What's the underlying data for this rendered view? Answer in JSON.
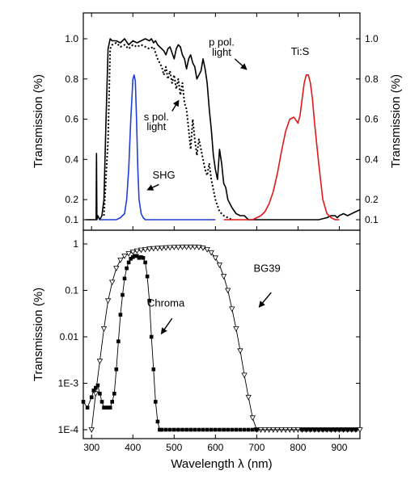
{
  "chart_data": [
    {
      "panel": "top",
      "type": "line",
      "ylabel_left": "Transmission (%)",
      "ylabel_right": "Transmission (%)",
      "xlim": [
        280,
        950
      ],
      "ylim": [
        0.1,
        1.0
      ],
      "xticks": [
        300,
        400,
        500,
        600,
        700,
        800,
        900
      ],
      "yticks": [
        {
          "v": 0.1,
          "label": "0.1"
        },
        {
          "v": 0.2,
          "label": "0.2"
        },
        {
          "v": 0.4,
          "label": "0.4"
        },
        {
          "v": 0.6,
          "label": "0.6"
        },
        {
          "v": 0.8,
          "label": "0.8"
        },
        {
          "v": 1.0,
          "label": "1.0"
        }
      ],
      "grid": false,
      "series": [
        {
          "name": "p pol. light",
          "color": "#000000",
          "style": "solid",
          "x": [
            285,
            300,
            311,
            312,
            313,
            315,
            320,
            325,
            330,
            335,
            340,
            345,
            350,
            360,
            370,
            380,
            390,
            400,
            410,
            420,
            430,
            440,
            445,
            450,
            455,
            460,
            465,
            470,
            475,
            480,
            485,
            490,
            495,
            500,
            505,
            510,
            515,
            520,
            525,
            530,
            535,
            540,
            545,
            550,
            555,
            560,
            565,
            570,
            575,
            580,
            585,
            590,
            595,
            600,
            605,
            610,
            615,
            620,
            625,
            630,
            640,
            650,
            660,
            670,
            680,
            700,
            750,
            800,
            850,
            870,
            880,
            890,
            895,
            900,
            910,
            920,
            930,
            940,
            950
          ],
          "y": [
            0.1,
            0.1,
            0.1,
            0.43,
            0.1,
            0.12,
            0.1,
            0.12,
            0.2,
            0.6,
            0.95,
            1.0,
            0.99,
            0.99,
            0.98,
            1.0,
            0.97,
            0.99,
            0.98,
            0.99,
            1.0,
            0.99,
            1.0,
            0.98,
            0.99,
            0.97,
            0.96,
            0.95,
            0.94,
            0.92,
            0.95,
            0.96,
            0.93,
            0.9,
            0.95,
            0.97,
            0.96,
            0.92,
            0.9,
            0.85,
            0.9,
            0.92,
            0.88,
            0.86,
            0.8,
            0.82,
            0.84,
            0.9,
            0.85,
            0.78,
            0.65,
            0.55,
            0.42,
            0.35,
            0.3,
            0.45,
            0.38,
            0.28,
            0.26,
            0.2,
            0.16,
            0.13,
            0.12,
            0.12,
            0.1,
            0.1,
            0.1,
            0.1,
            0.1,
            0.11,
            0.12,
            0.12,
            0.11,
            0.12,
            0.13,
            0.12,
            0.13,
            0.14,
            0.15
          ]
        },
        {
          "name": "s pol. light",
          "color": "#000000",
          "style": "dotted",
          "x": [
            330,
            340,
            345,
            350,
            360,
            370,
            380,
            390,
            400,
            410,
            420,
            430,
            440,
            450,
            455,
            460,
            465,
            470,
            475,
            480,
            485,
            490,
            495,
            500,
            505,
            510,
            515,
            520,
            525,
            530,
            535,
            540,
            545,
            550,
            555,
            560,
            565,
            570,
            575,
            580,
            585,
            590,
            595,
            600,
            610,
            620,
            630,
            640
          ],
          "y": [
            0.12,
            0.5,
            0.95,
            0.97,
            0.98,
            0.96,
            0.97,
            0.95,
            0.97,
            0.96,
            0.97,
            0.96,
            0.95,
            0.96,
            0.93,
            0.9,
            0.88,
            0.86,
            0.82,
            0.86,
            0.8,
            0.84,
            0.78,
            0.82,
            0.75,
            0.8,
            0.72,
            0.78,
            0.68,
            0.65,
            0.55,
            0.45,
            0.6,
            0.5,
            0.42,
            0.5,
            0.45,
            0.4,
            0.35,
            0.32,
            0.38,
            0.3,
            0.25,
            0.2,
            0.14,
            0.12,
            0.11,
            0.1
          ]
        },
        {
          "name": "SHG",
          "color": "#1f3fd6",
          "style": "solid",
          "x": [
            320,
            340,
            360,
            370,
            380,
            385,
            390,
            395,
            400,
            403,
            406,
            409,
            412,
            415,
            420,
            425,
            430,
            440,
            460,
            500,
            550,
            600
          ],
          "y": [
            0.1,
            0.1,
            0.1,
            0.11,
            0.13,
            0.2,
            0.35,
            0.6,
            0.8,
            0.82,
            0.79,
            0.6,
            0.35,
            0.2,
            0.13,
            0.11,
            0.1,
            0.1,
            0.1,
            0.1,
            0.1,
            0.1
          ]
        },
        {
          "name": "Ti:S",
          "color": "#e01818",
          "style": "solid",
          "x": [
            620,
            660,
            690,
            700,
            710,
            720,
            730,
            740,
            750,
            760,
            770,
            780,
            790,
            800,
            805,
            810,
            815,
            820,
            825,
            830,
            835,
            840,
            850,
            860,
            870,
            880,
            890,
            900
          ],
          "y": [
            0.1,
            0.1,
            0.1,
            0.11,
            0.12,
            0.14,
            0.18,
            0.24,
            0.33,
            0.44,
            0.54,
            0.6,
            0.61,
            0.58,
            0.62,
            0.7,
            0.78,
            0.82,
            0.82,
            0.78,
            0.7,
            0.58,
            0.38,
            0.2,
            0.13,
            0.11,
            0.1,
            0.1
          ]
        }
      ],
      "annotations": [
        {
          "text": "p pol.",
          "x": 615,
          "y": 0.965
        },
        {
          "text": "light",
          "x": 615,
          "y": 0.915
        },
        {
          "text": "s pol.",
          "x": 457,
          "y": 0.595
        },
        {
          "text": "light",
          "x": 457,
          "y": 0.545
        },
        {
          "text": "SHG",
          "x": 475,
          "y": 0.305
        },
        {
          "text": "Ti:S",
          "x": 805,
          "y": 0.92
        }
      ],
      "arrows": [
        {
          "from": [
            647,
            0.9
          ],
          "to": [
            674,
            0.85
          ]
        },
        {
          "from": [
            495,
            0.64
          ],
          "to": [
            510,
            0.69
          ]
        },
        {
          "from": [
            463,
            0.275
          ],
          "to": [
            437,
            0.25
          ]
        }
      ]
    },
    {
      "panel": "bottom",
      "type": "line",
      "xlabel": "Wavelength λ (nm)",
      "ylabel": "Transmission (%)",
      "xlim": [
        280,
        950
      ],
      "ylim": [
        0.0001,
        1.5
      ],
      "yscale": "log",
      "xticks": [
        300,
        400,
        500,
        600,
        700,
        800,
        900
      ],
      "yticks": [
        {
          "v": 0.0001,
          "label": "1E-4"
        },
        {
          "v": 0.001,
          "label": "1E-3"
        },
        {
          "v": 0.01,
          "label": "0.01"
        },
        {
          "v": 0.1,
          "label": "0.1"
        },
        {
          "v": 1,
          "label": "1"
        }
      ],
      "grid": false,
      "series": [
        {
          "name": "BG39",
          "color": "#000000",
          "marker": "triangle-down-open",
          "x": [
            300,
            310,
            320,
            330,
            340,
            350,
            360,
            370,
            380,
            390,
            400,
            410,
            420,
            430,
            440,
            450,
            460,
            470,
            480,
            490,
            500,
            510,
            520,
            530,
            540,
            550,
            560,
            570,
            580,
            590,
            600,
            610,
            620,
            630,
            640,
            650,
            660,
            670,
            680,
            690,
            700,
            710,
            720,
            730,
            740,
            750,
            760,
            770,
            780,
            790,
            800,
            810,
            820,
            830,
            840,
            850,
            860,
            870,
            880,
            890,
            900,
            910,
            920,
            930,
            940,
            950
          ],
          "y": [
            0.0001,
            0.0006,
            0.003,
            0.015,
            0.06,
            0.15,
            0.3,
            0.45,
            0.55,
            0.62,
            0.67,
            0.71,
            0.74,
            0.76,
            0.78,
            0.8,
            0.81,
            0.82,
            0.83,
            0.84,
            0.85,
            0.85,
            0.86,
            0.86,
            0.86,
            0.86,
            0.85,
            0.82,
            0.76,
            0.65,
            0.5,
            0.35,
            0.2,
            0.1,
            0.04,
            0.015,
            0.005,
            0.0015,
            0.0005,
            0.00018,
            0.0001,
            0.0001,
            0.0001,
            0.0001,
            0.0001,
            0.0001,
            0.0001,
            0.0001,
            0.0001,
            0.0001,
            0.0001,
            0.0001,
            0.0001,
            0.0001,
            0.0001,
            0.0001,
            0.0001,
            0.0001,
            0.0001,
            0.0001,
            0.0001,
            0.0001,
            0.0001,
            0.0001,
            0.0001,
            0.0001
          ]
        },
        {
          "name": "Chroma",
          "color": "#000000",
          "marker": "square-filled",
          "x": [
            280,
            290,
            300,
            305,
            310,
            315,
            320,
            325,
            330,
            335,
            340,
            345,
            350,
            355,
            360,
            365,
            370,
            375,
            380,
            385,
            390,
            395,
            400,
            405,
            410,
            415,
            420,
            425,
            430,
            435,
            440,
            445,
            450,
            455,
            460,
            465,
            470,
            480,
            490,
            500,
            510,
            520,
            530,
            540,
            550,
            560,
            570,
            580,
            590,
            600,
            610,
            620,
            630,
            640,
            650,
            660,
            670,
            680,
            690,
            700,
            810,
            820,
            830,
            840,
            850,
            860,
            870,
            880,
            890,
            900,
            910,
            920,
            930,
            940
          ],
          "y": [
            0.0004,
            0.0003,
            0.0005,
            0.0007,
            0.0008,
            0.0009,
            0.0006,
            0.0004,
            0.0003,
            0.0003,
            0.0003,
            0.0003,
            0.0004,
            0.0006,
            0.002,
            0.008,
            0.03,
            0.08,
            0.18,
            0.3,
            0.4,
            0.48,
            0.52,
            0.55,
            0.55,
            0.5,
            0.52,
            0.5,
            0.4,
            0.2,
            0.06,
            0.01,
            0.002,
            0.0004,
            0.00015,
            0.0001,
            0.0001,
            0.0001,
            0.0001,
            0.0001,
            0.0001,
            0.0001,
            0.0001,
            0.0001,
            0.0001,
            0.0001,
            0.0001,
            0.0001,
            0.0001,
            0.0001,
            0.0001,
            0.0001,
            0.0001,
            0.0001,
            0.0001,
            0.0001,
            0.0001,
            0.0001,
            0.0001,
            0.0001,
            0.0001,
            0.0001,
            0.0001,
            0.0001,
            0.0001,
            0.0001,
            0.0001,
            0.0001,
            0.0001,
            0.0001,
            0.0001,
            0.0001,
            0.0001,
            0.0001
          ]
        }
      ],
      "annotations": [
        {
          "text": "BG39",
          "x": 725,
          "y": 0.25
        },
        {
          "text": "Chroma",
          "x": 480,
          "y": 0.045
        }
      ],
      "arrows": [
        {
          "from": [
            735,
            0.09
          ],
          "to": [
            707,
            0.045
          ]
        },
        {
          "from": [
            495,
            0.025
          ],
          "to": [
            470,
            0.012
          ]
        }
      ]
    }
  ]
}
